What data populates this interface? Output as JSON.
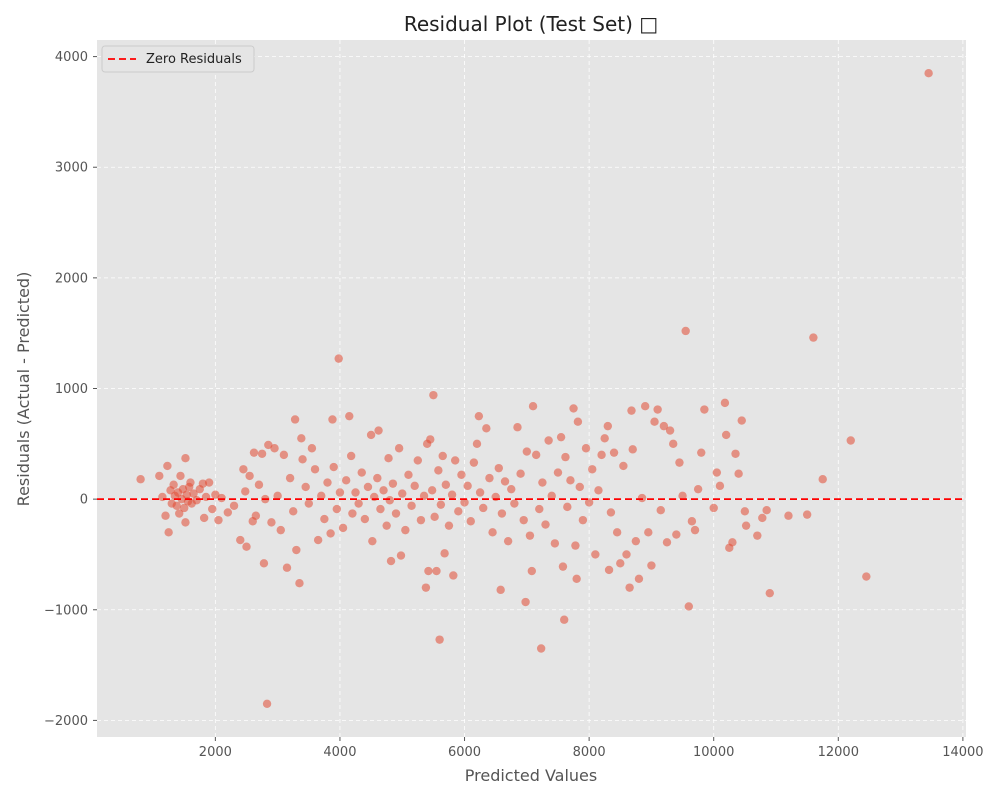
{
  "chart_data": {
    "type": "scatter",
    "title": "Residual Plot (Test Set) □",
    "xlabel": "Predicted Values",
    "ylabel": "Residuals (Actual - Predicted)",
    "xlim": [
      100,
      14050
    ],
    "ylim": [
      -2150,
      4150
    ],
    "xticks": [
      2000,
      4000,
      6000,
      8000,
      10000,
      12000,
      14000
    ],
    "yticks": [
      -2000,
      -1000,
      0,
      1000,
      2000,
      3000,
      4000
    ],
    "grid": true,
    "legend": {
      "placement": "top-left",
      "entries": [
        "Zero Residuals"
      ]
    },
    "reference_line": {
      "y": 0,
      "style": "dashed",
      "color": "#ff0000",
      "label": "Zero Residuals"
    },
    "colors": {
      "points": "#e24a33",
      "background": "#e5e5e5",
      "grid": "#ffffff",
      "zero_line": "#ff0000"
    },
    "points": [
      {
        "x": 800,
        "y": 180
      },
      {
        "x": 1100,
        "y": 210
      },
      {
        "x": 1150,
        "y": 20
      },
      {
        "x": 1200,
        "y": -150
      },
      {
        "x": 1230,
        "y": 300
      },
      {
        "x": 1250,
        "y": -300
      },
      {
        "x": 1280,
        "y": 80
      },
      {
        "x": 1300,
        "y": -40
      },
      {
        "x": 1330,
        "y": 130
      },
      {
        "x": 1350,
        "y": 30
      },
      {
        "x": 1380,
        "y": -60
      },
      {
        "x": 1400,
        "y": 60
      },
      {
        "x": 1420,
        "y": -130
      },
      {
        "x": 1440,
        "y": 210
      },
      {
        "x": 1460,
        "y": 0
      },
      {
        "x": 1480,
        "y": 90
      },
      {
        "x": 1500,
        "y": -80
      },
      {
        "x": 1520,
        "y": 370
      },
      {
        "x": 1520,
        "y": -210
      },
      {
        "x": 1540,
        "y": 40
      },
      {
        "x": 1560,
        "y": -20
      },
      {
        "x": 1580,
        "y": 110
      },
      {
        "x": 1600,
        "y": 150
      },
      {
        "x": 1620,
        "y": -40
      },
      {
        "x": 1650,
        "y": 50
      },
      {
        "x": 1700,
        "y": -10
      },
      {
        "x": 1750,
        "y": 90
      },
      {
        "x": 1800,
        "y": 140
      },
      {
        "x": 1820,
        "y": -170
      },
      {
        "x": 1850,
        "y": 20
      },
      {
        "x": 1900,
        "y": 150
      },
      {
        "x": 1950,
        "y": -90
      },
      {
        "x": 2000,
        "y": 40
      },
      {
        "x": 2050,
        "y": -190
      },
      {
        "x": 2100,
        "y": 10
      },
      {
        "x": 2200,
        "y": -120
      },
      {
        "x": 2300,
        "y": -60
      },
      {
        "x": 2400,
        "y": -370
      },
      {
        "x": 2450,
        "y": 270
      },
      {
        "x": 2480,
        "y": 70
      },
      {
        "x": 2500,
        "y": -430
      },
      {
        "x": 2550,
        "y": 210
      },
      {
        "x": 2600,
        "y": -200
      },
      {
        "x": 2620,
        "y": 420
      },
      {
        "x": 2650,
        "y": -150
      },
      {
        "x": 2700,
        "y": 130
      },
      {
        "x": 2750,
        "y": 410
      },
      {
        "x": 2780,
        "y": -580
      },
      {
        "x": 2800,
        "y": 0
      },
      {
        "x": 2830,
        "y": -1850
      },
      {
        "x": 2850,
        "y": 490
      },
      {
        "x": 2900,
        "y": -210
      },
      {
        "x": 2950,
        "y": 460
      },
      {
        "x": 3000,
        "y": 30
      },
      {
        "x": 3050,
        "y": -280
      },
      {
        "x": 3100,
        "y": 400
      },
      {
        "x": 3150,
        "y": -620
      },
      {
        "x": 3200,
        "y": 190
      },
      {
        "x": 3250,
        "y": -110
      },
      {
        "x": 3280,
        "y": 720
      },
      {
        "x": 3300,
        "y": -460
      },
      {
        "x": 3350,
        "y": -760
      },
      {
        "x": 3380,
        "y": 550
      },
      {
        "x": 3400,
        "y": 360
      },
      {
        "x": 3450,
        "y": 110
      },
      {
        "x": 3500,
        "y": -40
      },
      {
        "x": 3550,
        "y": 460
      },
      {
        "x": 3600,
        "y": 270
      },
      {
        "x": 3650,
        "y": -370
      },
      {
        "x": 3700,
        "y": 30
      },
      {
        "x": 3750,
        "y": -180
      },
      {
        "x": 3800,
        "y": 150
      },
      {
        "x": 3850,
        "y": -310
      },
      {
        "x": 3880,
        "y": 720
      },
      {
        "x": 3900,
        "y": 290
      },
      {
        "x": 3950,
        "y": -90
      },
      {
        "x": 3980,
        "y": 1270
      },
      {
        "x": 4000,
        "y": 60
      },
      {
        "x": 4050,
        "y": -260
      },
      {
        "x": 4100,
        "y": 170
      },
      {
        "x": 4150,
        "y": 750
      },
      {
        "x": 4180,
        "y": 390
      },
      {
        "x": 4200,
        "y": -130
      },
      {
        "x": 4250,
        "y": 60
      },
      {
        "x": 4300,
        "y": -40
      },
      {
        "x": 4350,
        "y": 240
      },
      {
        "x": 4400,
        "y": -180
      },
      {
        "x": 4450,
        "y": 110
      },
      {
        "x": 4500,
        "y": 580
      },
      {
        "x": 4520,
        "y": -380
      },
      {
        "x": 4550,
        "y": 20
      },
      {
        "x": 4600,
        "y": 190
      },
      {
        "x": 4620,
        "y": 620
      },
      {
        "x": 4650,
        "y": -90
      },
      {
        "x": 4700,
        "y": 80
      },
      {
        "x": 4750,
        "y": -240
      },
      {
        "x": 4780,
        "y": 370
      },
      {
        "x": 4800,
        "y": -10
      },
      {
        "x": 4820,
        "y": -560
      },
      {
        "x": 4850,
        "y": 140
      },
      {
        "x": 4900,
        "y": -130
      },
      {
        "x": 4950,
        "y": 460
      },
      {
        "x": 4980,
        "y": -510
      },
      {
        "x": 5000,
        "y": 50
      },
      {
        "x": 5050,
        "y": -280
      },
      {
        "x": 5100,
        "y": 220
      },
      {
        "x": 5150,
        "y": -60
      },
      {
        "x": 5200,
        "y": 120
      },
      {
        "x": 5250,
        "y": 350
      },
      {
        "x": 5300,
        "y": -190
      },
      {
        "x": 5350,
        "y": 30
      },
      {
        "x": 5380,
        "y": -800
      },
      {
        "x": 5400,
        "y": 500
      },
      {
        "x": 5420,
        "y": -650
      },
      {
        "x": 5450,
        "y": 540
      },
      {
        "x": 5480,
        "y": 80
      },
      {
        "x": 5500,
        "y": 940
      },
      {
        "x": 5520,
        "y": -160
      },
      {
        "x": 5550,
        "y": -650
      },
      {
        "x": 5580,
        "y": 260
      },
      {
        "x": 5600,
        "y": -1270
      },
      {
        "x": 5620,
        "y": -50
      },
      {
        "x": 5650,
        "y": 390
      },
      {
        "x": 5680,
        "y": -490
      },
      {
        "x": 5700,
        "y": 130
      },
      {
        "x": 5750,
        "y": -240
      },
      {
        "x": 5800,
        "y": 40
      },
      {
        "x": 5820,
        "y": -690
      },
      {
        "x": 5850,
        "y": 350
      },
      {
        "x": 5900,
        "y": -110
      },
      {
        "x": 5950,
        "y": 220
      },
      {
        "x": 6000,
        "y": -30
      },
      {
        "x": 6050,
        "y": 120
      },
      {
        "x": 6100,
        "y": -200
      },
      {
        "x": 6150,
        "y": 330
      },
      {
        "x": 6200,
        "y": 500
      },
      {
        "x": 6230,
        "y": 750
      },
      {
        "x": 6250,
        "y": 60
      },
      {
        "x": 6300,
        "y": -80
      },
      {
        "x": 6350,
        "y": 640
      },
      {
        "x": 6400,
        "y": 190
      },
      {
        "x": 6450,
        "y": -300
      },
      {
        "x": 6500,
        "y": 20
      },
      {
        "x": 6550,
        "y": 280
      },
      {
        "x": 6580,
        "y": -820
      },
      {
        "x": 6600,
        "y": -130
      },
      {
        "x": 6650,
        "y": 160
      },
      {
        "x": 6700,
        "y": -380
      },
      {
        "x": 6750,
        "y": 90
      },
      {
        "x": 6800,
        "y": -40
      },
      {
        "x": 6850,
        "y": 650
      },
      {
        "x": 6900,
        "y": 230
      },
      {
        "x": 6950,
        "y": -190
      },
      {
        "x": 6980,
        "y": -930
      },
      {
        "x": 7000,
        "y": 430
      },
      {
        "x": 7050,
        "y": -330
      },
      {
        "x": 7080,
        "y": -650
      },
      {
        "x": 7100,
        "y": 840
      },
      {
        "x": 7150,
        "y": 400
      },
      {
        "x": 7200,
        "y": -90
      },
      {
        "x": 7230,
        "y": -1350
      },
      {
        "x": 7250,
        "y": 150
      },
      {
        "x": 7300,
        "y": -230
      },
      {
        "x": 7350,
        "y": 530
      },
      {
        "x": 7400,
        "y": 30
      },
      {
        "x": 7450,
        "y": -400
      },
      {
        "x": 7500,
        "y": 240
      },
      {
        "x": 7550,
        "y": 560
      },
      {
        "x": 7580,
        "y": -610
      },
      {
        "x": 7600,
        "y": -1090
      },
      {
        "x": 7620,
        "y": 380
      },
      {
        "x": 7650,
        "y": -70
      },
      {
        "x": 7700,
        "y": 170
      },
      {
        "x": 7750,
        "y": 820
      },
      {
        "x": 7780,
        "y": -420
      },
      {
        "x": 7800,
        "y": -720
      },
      {
        "x": 7820,
        "y": 700
      },
      {
        "x": 7850,
        "y": 110
      },
      {
        "x": 7900,
        "y": -190
      },
      {
        "x": 7950,
        "y": 460
      },
      {
        "x": 8000,
        "y": -30
      },
      {
        "x": 8050,
        "y": 270
      },
      {
        "x": 8100,
        "y": -500
      },
      {
        "x": 8150,
        "y": 80
      },
      {
        "x": 8200,
        "y": 400
      },
      {
        "x": 8250,
        "y": 550
      },
      {
        "x": 8300,
        "y": 660
      },
      {
        "x": 8320,
        "y": -640
      },
      {
        "x": 8350,
        "y": -120
      },
      {
        "x": 8400,
        "y": 420
      },
      {
        "x": 8450,
        "y": -300
      },
      {
        "x": 8500,
        "y": -580
      },
      {
        "x": 8550,
        "y": 300
      },
      {
        "x": 8600,
        "y": -500
      },
      {
        "x": 8650,
        "y": -800
      },
      {
        "x": 8680,
        "y": 800
      },
      {
        "x": 8700,
        "y": 450
      },
      {
        "x": 8750,
        "y": -380
      },
      {
        "x": 8800,
        "y": -720
      },
      {
        "x": 8850,
        "y": 10
      },
      {
        "x": 8900,
        "y": 840
      },
      {
        "x": 8950,
        "y": -300
      },
      {
        "x": 9000,
        "y": -600
      },
      {
        "x": 9050,
        "y": 700
      },
      {
        "x": 9100,
        "y": 810
      },
      {
        "x": 9150,
        "y": -100
      },
      {
        "x": 9200,
        "y": 660
      },
      {
        "x": 9250,
        "y": -390
      },
      {
        "x": 9300,
        "y": 620
      },
      {
        "x": 9350,
        "y": 500
      },
      {
        "x": 9400,
        "y": -320
      },
      {
        "x": 9450,
        "y": 330
      },
      {
        "x": 9500,
        "y": 30
      },
      {
        "x": 9550,
        "y": 1520
      },
      {
        "x": 9600,
        "y": -970
      },
      {
        "x": 9650,
        "y": -200
      },
      {
        "x": 9700,
        "y": -280
      },
      {
        "x": 9750,
        "y": 90
      },
      {
        "x": 9800,
        "y": 420
      },
      {
        "x": 9850,
        "y": 810
      },
      {
        "x": 10000,
        "y": -80
      },
      {
        "x": 10050,
        "y": 240
      },
      {
        "x": 10100,
        "y": 120
      },
      {
        "x": 10180,
        "y": 870
      },
      {
        "x": 10200,
        "y": 580
      },
      {
        "x": 10250,
        "y": -440
      },
      {
        "x": 10300,
        "y": -390
      },
      {
        "x": 10350,
        "y": 410
      },
      {
        "x": 10400,
        "y": 230
      },
      {
        "x": 10450,
        "y": 710
      },
      {
        "x": 10500,
        "y": -110
      },
      {
        "x": 10520,
        "y": -240
      },
      {
        "x": 10700,
        "y": -330
      },
      {
        "x": 10780,
        "y": -170
      },
      {
        "x": 10850,
        "y": -100
      },
      {
        "x": 10900,
        "y": -850
      },
      {
        "x": 11200,
        "y": -150
      },
      {
        "x": 11500,
        "y": -140
      },
      {
        "x": 11600,
        "y": 1460
      },
      {
        "x": 11750,
        "y": 180
      },
      {
        "x": 12200,
        "y": 530
      },
      {
        "x": 12450,
        "y": -700
      },
      {
        "x": 13450,
        "y": 3850
      }
    ]
  }
}
